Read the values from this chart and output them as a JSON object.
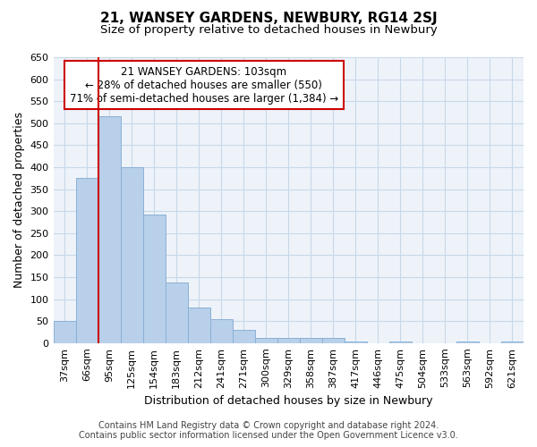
{
  "title": "21, WANSEY GARDENS, NEWBURY, RG14 2SJ",
  "subtitle": "Size of property relative to detached houses in Newbury",
  "xlabel": "Distribution of detached houses by size in Newbury",
  "ylabel": "Number of detached properties",
  "footer_line1": "Contains HM Land Registry data © Crown copyright and database right 2024.",
  "footer_line2": "Contains public sector information licensed under the Open Government Licence v3.0.",
  "annotation_line1": "21 WANSEY GARDENS: 103sqm",
  "annotation_line2": "← 28% of detached houses are smaller (550)",
  "annotation_line3": "71% of semi-detached houses are larger (1,384) →",
  "categories": [
    "37sqm",
    "66sqm",
    "95sqm",
    "125sqm",
    "154sqm",
    "183sqm",
    "212sqm",
    "241sqm",
    "271sqm",
    "300sqm",
    "329sqm",
    "358sqm",
    "387sqm",
    "417sqm",
    "446sqm",
    "475sqm",
    "504sqm",
    "533sqm",
    "563sqm",
    "592sqm",
    "621sqm"
  ],
  "values": [
    50,
    375,
    515,
    400,
    293,
    138,
    80,
    55,
    30,
    12,
    12,
    12,
    12,
    3,
    0,
    3,
    0,
    0,
    3,
    0,
    3
  ],
  "bar_color": "#b8d0ea",
  "bar_edge_color": "#8ab0d5",
  "highlight_bar_index": 2,
  "highlight_line_color": "#cc0000",
  "annotation_box_edge_color": "#cc0000",
  "annotation_box_face_color": "#ffffff",
  "grid_color": "#c8d8e8",
  "background_color": "#eef3fa",
  "ylim": [
    0,
    650
  ],
  "yticks": [
    0,
    50,
    100,
    150,
    200,
    250,
    300,
    350,
    400,
    450,
    500,
    550,
    600,
    650
  ],
  "title_fontsize": 11,
  "subtitle_fontsize": 9.5,
  "axis_label_fontsize": 9,
  "tick_fontsize": 8,
  "annotation_fontsize": 8.5,
  "footer_fontsize": 7
}
